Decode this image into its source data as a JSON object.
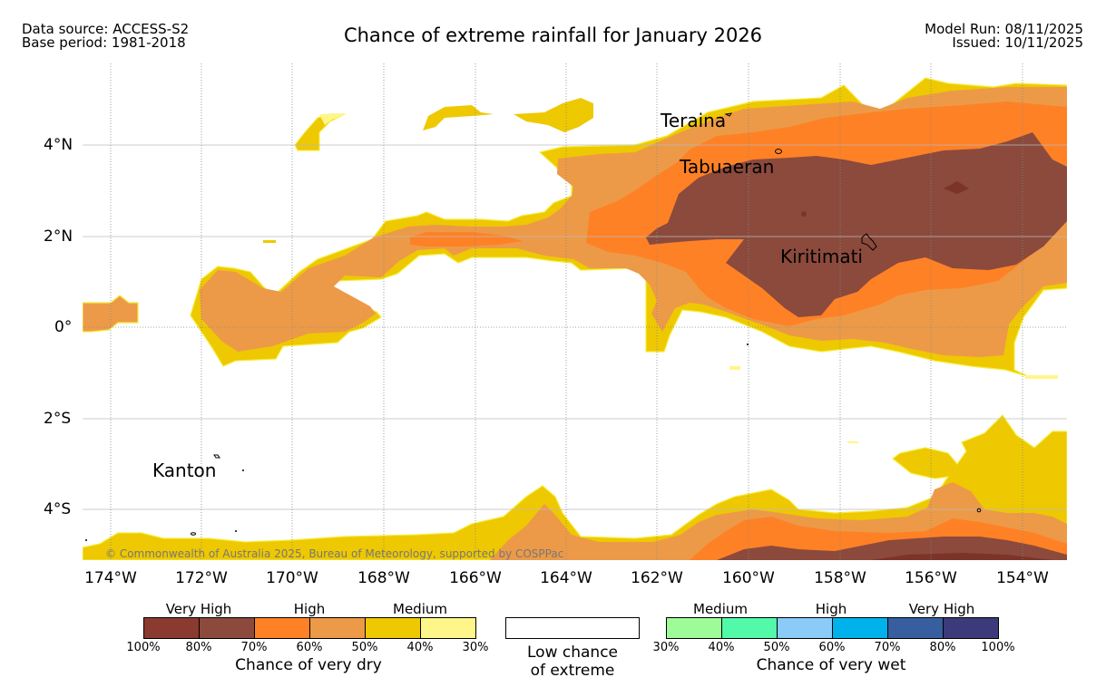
{
  "header": {
    "data_source": "Data source: ACCESS-S2",
    "base_period": "Base period: 1981-2018",
    "title": "Chance of extreme rainfall for January 2026",
    "model_run": "Model Run: 08/11/2025",
    "issued": "Issued: 10/11/2025"
  },
  "map": {
    "lat_labels": [
      "4°N",
      "2°N",
      "0°",
      "2°S",
      "4°S"
    ],
    "lon_labels": [
      "174°W",
      "172°W",
      "170°W",
      "168°W",
      "166°W",
      "164°W",
      "162°W",
      "160°W",
      "158°W",
      "156°W",
      "154°W"
    ],
    "places": {
      "teraina": "Teraina",
      "tabuaeran": "Tabuaeran",
      "kiritimati": "Kiritimati",
      "kanton": "Kanton"
    },
    "copyright": "© Commonwealth of Australia 2025, Bureau of Meteorology, supported by COSPPac",
    "colors": {
      "dry_100_80": "#8b3a2f",
      "dry_80_70": "#8b4a3c",
      "dry_70_60": "#ff8126",
      "dry_60_50": "#ec9a48",
      "dry_50_40": "#eec800",
      "dry_40_30": "#fff68a"
    }
  },
  "legend": {
    "dry": {
      "headings": [
        "Very High",
        "High",
        "Medium"
      ],
      "ticks": [
        "100%",
        "80%",
        "70%",
        "60%",
        "50%",
        "40%",
        "30%"
      ],
      "caption": "Chance of very dry",
      "colors": [
        "#8b3a2f",
        "#8b4a3c",
        "#ff8126",
        "#ec9a48",
        "#eec800",
        "#fff68a"
      ]
    },
    "low": {
      "caption_line1": "Low chance",
      "caption_line2": "of extreme"
    },
    "wet": {
      "headings": [
        "Medium",
        "High",
        "Very High"
      ],
      "ticks": [
        "30%",
        "40%",
        "50%",
        "60%",
        "70%",
        "80%",
        "100%"
      ],
      "caption": "Chance of very wet",
      "colors": [
        "#9efc98",
        "#52f9a8",
        "#8acbf7",
        "#00b2ec",
        "#375fa0",
        "#3c3a7a"
      ]
    }
  }
}
